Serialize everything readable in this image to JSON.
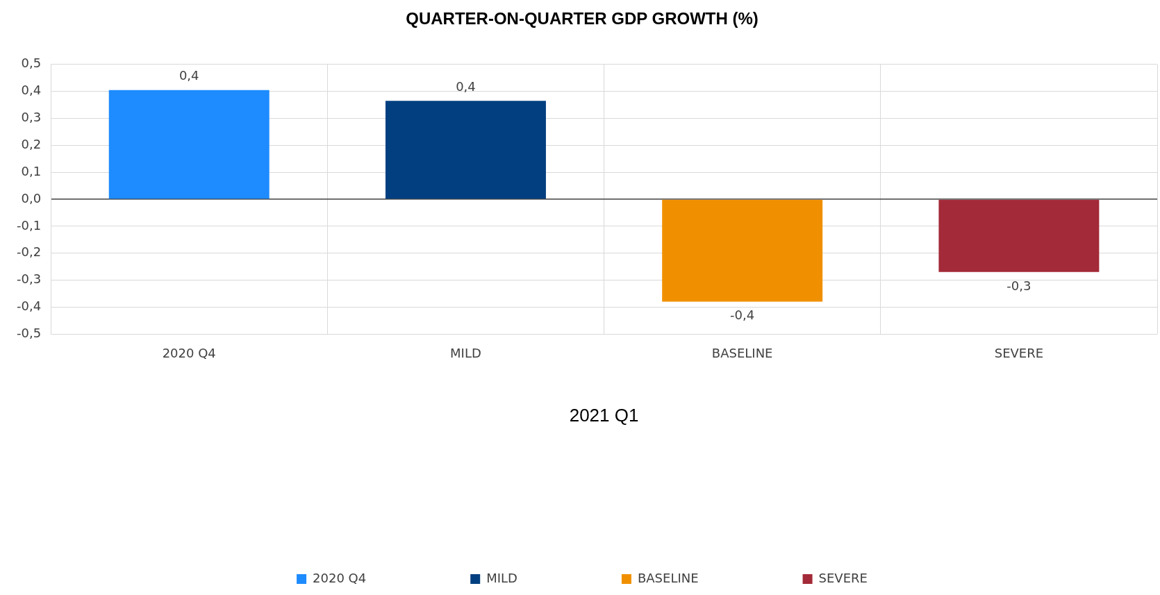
{
  "chart_data": {
    "type": "bar",
    "title": "QUARTER-ON-QUARTER GDP GROWTH (%)",
    "xlabel": "2021 Q1",
    "categories": [
      "2020 Q4",
      "MILD",
      "BASELINE",
      "SEVERE"
    ],
    "series": [
      {
        "name": "2020 Q4",
        "color": "#1e8bff",
        "values": [
          0.405,
          null,
          null,
          null
        ],
        "value_labels": [
          "0,4",
          null,
          null,
          null
        ]
      },
      {
        "name": "MILD",
        "color": "#023f80",
        "values": [
          null,
          0.365,
          null,
          null
        ],
        "value_labels": [
          null,
          "0,4",
          null,
          null
        ]
      },
      {
        "name": "BASELINE",
        "color": "#f09000",
        "values": [
          null,
          null,
          -0.38,
          null
        ],
        "value_labels": [
          null,
          null,
          "-0,4",
          null
        ]
      },
      {
        "name": "SEVERE",
        "color": "#a32a38",
        "values": [
          null,
          null,
          null,
          -0.27
        ],
        "value_labels": [
          null,
          null,
          null,
          "-0,3"
        ]
      }
    ],
    "ylim": [
      -0.5,
      0.5
    ],
    "yticks": [
      {
        "value": -0.5,
        "label": "-0,5"
      },
      {
        "value": -0.4,
        "label": "-0,4"
      },
      {
        "value": -0.3,
        "label": "-0,3"
      },
      {
        "value": -0.2,
        "label": "-0,2"
      },
      {
        "value": -0.1,
        "label": "-0,1"
      },
      {
        "value": 0,
        "label": "0,0"
      },
      {
        "value": 0.1,
        "label": "0,1"
      },
      {
        "value": 0.2,
        "label": "0,2"
      },
      {
        "value": 0.3,
        "label": "0,3"
      },
      {
        "value": 0.4,
        "label": "0,4"
      },
      {
        "value": 0.5,
        "label": "0,5"
      }
    ],
    "grid": true,
    "legend": "bottom"
  }
}
